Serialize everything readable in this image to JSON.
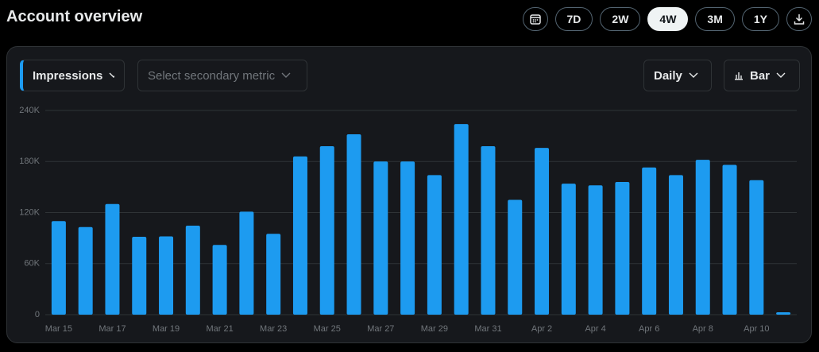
{
  "header": {
    "title": "Account overview",
    "ranges": [
      {
        "label": "7D"
      },
      {
        "label": "2W"
      },
      {
        "label": "4W",
        "selected": true
      },
      {
        "label": "3M"
      },
      {
        "label": "1Y"
      }
    ]
  },
  "controls": {
    "primary_metric": "Impressions",
    "secondary_metric": "Select secondary metric",
    "interval": "Daily",
    "chart_style": "Bar"
  },
  "chart_data": {
    "type": "bar",
    "categories": [
      "Mar 15",
      null,
      "Mar 17",
      null,
      "Mar 19",
      null,
      "Mar 21",
      null,
      "Mar 23",
      null,
      "Mar 25",
      null,
      "Mar 27",
      null,
      "Mar 29",
      null,
      "Mar 31",
      null,
      "Apr 2",
      null,
      "Apr 4",
      null,
      "Apr 6",
      null,
      "Apr 8",
      null,
      "Apr 10",
      null
    ],
    "values": [
      110000,
      103000,
      130000,
      91500,
      92000,
      104600,
      82000,
      121000,
      95000,
      186000,
      198000,
      212000,
      180000,
      180000,
      164000,
      224000,
      198000,
      135000,
      196000,
      154000,
      152000,
      156000,
      173000,
      164000,
      182000,
      176000,
      158000,
      2800
    ],
    "color": "#1d9bf0",
    "ylim": [
      0,
      240000
    ],
    "yticks": [
      0,
      {
        "value": 60000,
        "label": "60K"
      },
      {
        "value": 120000,
        "label": "120K"
      },
      {
        "value": 180000,
        "label": "180K"
      },
      {
        "value": 240000,
        "label": "240K"
      }
    ],
    "grid": true
  }
}
